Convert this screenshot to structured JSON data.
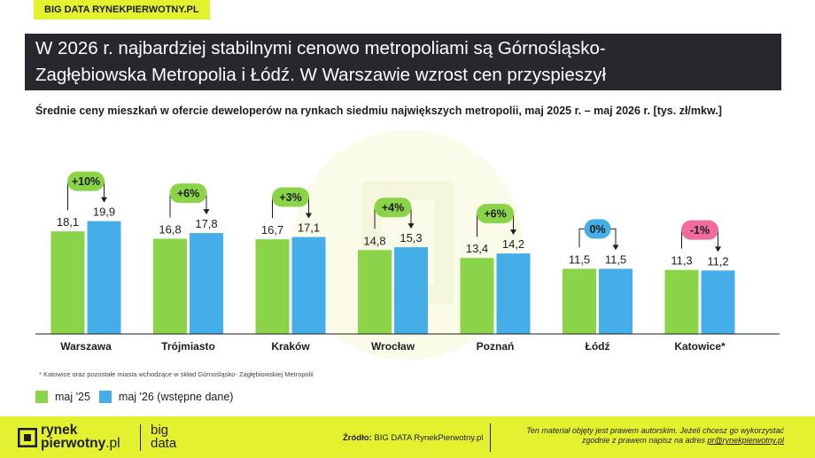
{
  "brand_tag": "BIG DATA RYNEKPIERWOTNY.PL",
  "title": {
    "line1": "W 2026 r. najbardziej stabilnymi cenowo metropoliami są Górnośląsko-",
    "line2": "Zagłębiowska Metropolia i Łódź. W Warszawie wzrost cen przyspieszył"
  },
  "chart_data": {
    "type": "bar",
    "title": "Średnie ceny mieszkań w ofercie deweloperów na rynkach siedmiu największych metropolii, maj 2025 r. – maj 2026 r. [tys. zł/mkw.]",
    "categories": [
      "Warszawa",
      "Trójmiasto",
      "Kraków",
      "Wrocław",
      "Poznań",
      "Łódź",
      "Katowice*"
    ],
    "series": [
      {
        "name": "maj '25",
        "color": "#8bd44a",
        "values": [
          18.1,
          16.8,
          16.7,
          14.8,
          13.4,
          11.5,
          11.3
        ],
        "labels": [
          "18,1",
          "16,8",
          "16,7",
          "14,8",
          "13,4",
          "11,5",
          "11,3"
        ]
      },
      {
        "name": "maj '26 (wstępne dane)",
        "color": "#45aee8",
        "values": [
          19.9,
          17.8,
          17.1,
          15.3,
          14.2,
          11.5,
          11.2
        ],
        "labels": [
          "19,9",
          "17,8",
          "17,1",
          "15,3",
          "14,2",
          "11,5",
          "11,2"
        ]
      }
    ],
    "changes": [
      "+10%",
      "+6%",
      "+3%",
      "+4%",
      "+6%",
      "0%",
      "-1%"
    ],
    "change_colors": [
      "#8bd44a",
      "#8bd44a",
      "#8bd44a",
      "#8bd44a",
      "#8bd44a",
      "#45aee8",
      "#f06a9b"
    ],
    "ylim": [
      0,
      22
    ],
    "legend": "bottom-left",
    "grid": false
  },
  "footnote": "* Katowice oraz pozostałe miasta wchodzące w skład Górnośląsko- Zagłębiowskiej Metropolii",
  "legend": {
    "item1": "maj '25",
    "item2": "maj '26 (wstępne dane)"
  },
  "footer": {
    "logo_line1": "rynek",
    "logo_line2a": "pierwotny",
    "logo_line2b": ".pl",
    "big": "big",
    "data": "data",
    "source_label": "Źródło:",
    "source_value": "BIG DATA RynekPierwotny.pl",
    "copyright_line1": "Ten materiał objęty jest prawem autorskim. Jeżeli chcesz go wykorzystać",
    "copyright_line2": "zgodnie z prawem napisz na adres",
    "copyright_email": "pr@rynekpierwotny.pl"
  },
  "colors": {
    "accent_yellow": "#e4f12f",
    "title_bg": "#26282d",
    "green": "#8bd44a",
    "blue": "#45aee8",
    "pink": "#f06a9b"
  }
}
